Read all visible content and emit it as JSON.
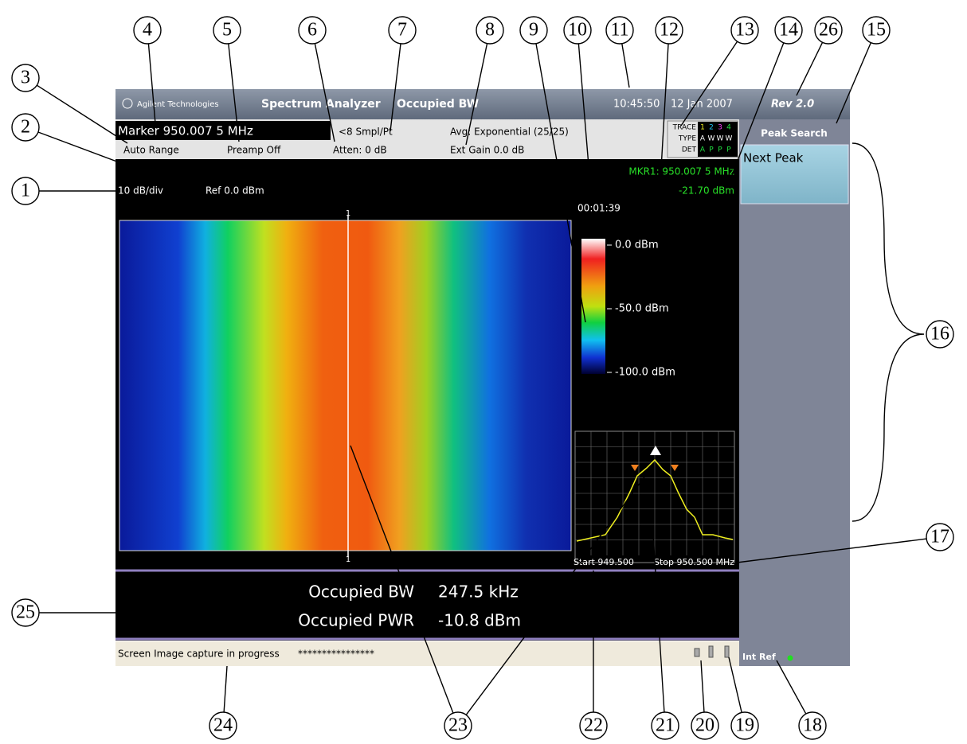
{
  "header": {
    "logo": "Agilent Technologies",
    "app": "Spectrum Analyzer",
    "mode": "Occupied BW",
    "time": "10:45:50",
    "date": "12 Jan 2007",
    "rev": "Rev 2.0"
  },
  "trace_table": [
    [
      "TRACE",
      "1",
      "2",
      "3",
      "4"
    ],
    [
      "TYPE",
      "A",
      "W",
      "W",
      "W"
    ],
    [
      "DET",
      "A",
      "P",
      "P",
      "P"
    ]
  ],
  "settings": {
    "marker": "Marker 950.007 5 MHz",
    "samples": "<8 Smpl/Pt",
    "avg": "Avg: Exponential (25/25)",
    "range": "Auto Range",
    "preamp": "Preamp Off",
    "atten": "Atten: 0 dB",
    "ext_gain": "Ext Gain 0.0 dB"
  },
  "display": {
    "scale": "10 dB/div",
    "ref": "Ref 0.0 dBm",
    "marker_freq": "MKR1: 950.007 5 MHz",
    "marker_level": "-21.70 dBm",
    "elapsed": "00:01:39",
    "marker_tag": "1",
    "color_scale": [
      "0.0 dBm",
      "-50.0 dBm",
      "-100.0 dBm"
    ],
    "start": "Start 949.500",
    "stop": "Stop 950.500 MHz"
  },
  "results": {
    "rows": [
      [
        "Occupied BW",
        "247.5 kHz"
      ],
      [
        "Occupied PWR",
        "-10.8 dBm"
      ]
    ]
  },
  "status": {
    "message": "Screen Image capture in progress",
    "progress": "****************"
  },
  "softkeys": {
    "menu": "Peak Search",
    "keys": [
      "Next Peak"
    ],
    "int_ref": "Int Ref"
  },
  "callouts": [
    "1",
    "2",
    "3",
    "4",
    "5",
    "6",
    "7",
    "8",
    "9",
    "10",
    "11",
    "12",
    "13",
    "14",
    "15",
    "16",
    "17",
    "18",
    "19",
    "20",
    "21",
    "22",
    "23",
    "24",
    "25",
    "26"
  ]
}
